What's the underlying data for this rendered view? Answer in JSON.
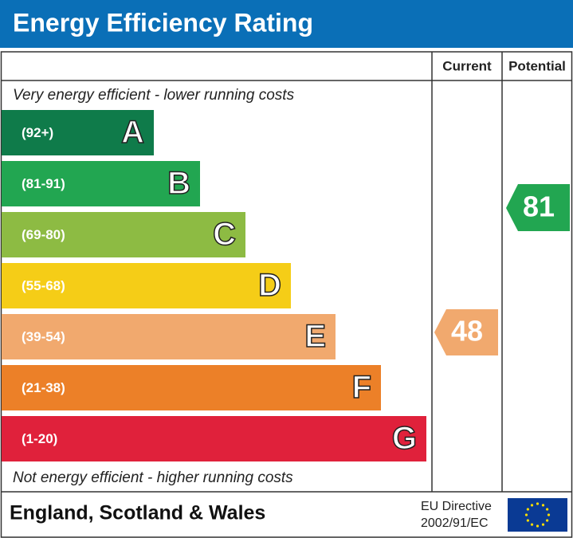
{
  "header": {
    "title": "Energy Efficiency Rating"
  },
  "columns": {
    "current": "Current",
    "potential": "Potential"
  },
  "top_note": "Very energy efficient - lower running costs",
  "bands": [
    {
      "range": "(92+)",
      "letter": "A"
    },
    {
      "range": "(81-91)",
      "letter": "B"
    },
    {
      "range": "(69-80)",
      "letter": "C"
    },
    {
      "range": "(55-68)",
      "letter": "D"
    },
    {
      "range": "(39-54)",
      "letter": "E"
    },
    {
      "range": "(21-38)",
      "letter": "F"
    },
    {
      "range": "(1-20)",
      "letter": "G"
    }
  ],
  "bottom_note": "Not energy efficient - higher running costs",
  "ratings": {
    "current": "48",
    "potential": "81"
  },
  "footer": {
    "region": "England, Scotland & Wales",
    "directive": [
      "EU Directive",
      "2002/91/EC"
    ]
  }
}
